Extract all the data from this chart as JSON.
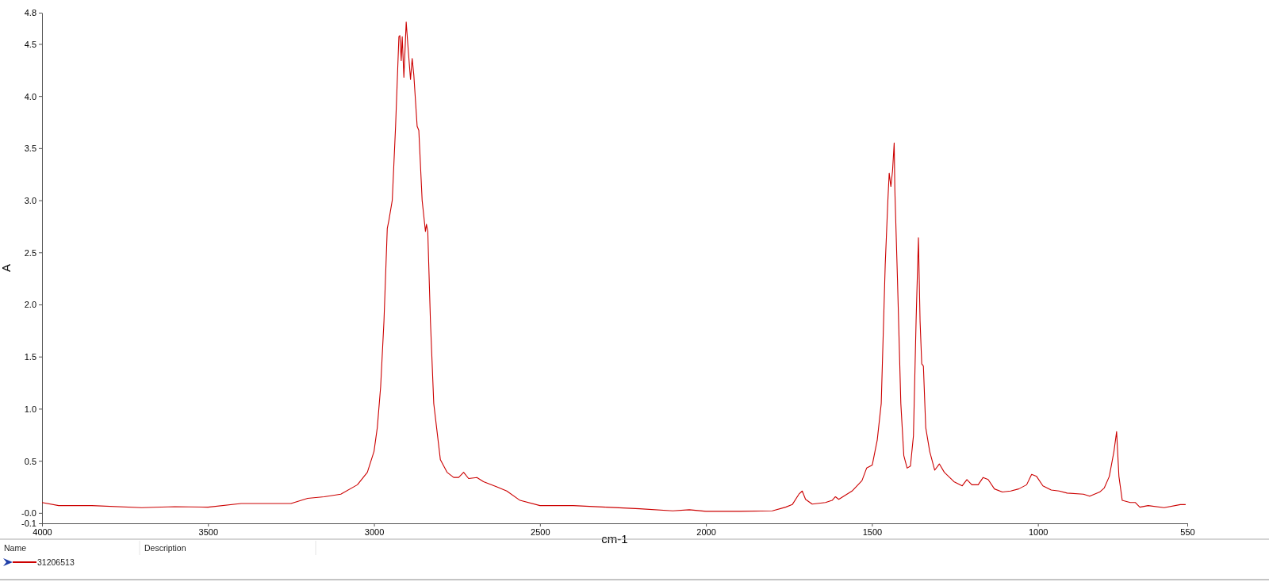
{
  "chart_data": {
    "type": "line",
    "xlabel": "cm-1",
    "ylabel": "A",
    "xlim": [
      4000,
      550
    ],
    "ylim": [
      -0.1,
      4.8
    ],
    "xticks": [
      4000,
      3500,
      3000,
      2500,
      2000,
      1500,
      1000,
      550
    ],
    "yticks": [
      4.8,
      4.5,
      {
        "value": 4,
        "label": "4.0"
      },
      3.5,
      {
        "value": 3,
        "label": "3.0"
      },
      2.5,
      {
        "value": 2,
        "label": "2.0"
      },
      1.5,
      {
        "value": 1,
        "label": "1.0"
      },
      0.5,
      {
        "value": 0,
        "label": "-0.0"
      },
      -0.1
    ],
    "grid": false,
    "legend": "bottom",
    "marker": "none",
    "line_style": "solid",
    "annotations": [
      "Name",
      "Description"
    ],
    "series": [
      {
        "name": "31206513",
        "color": "#cc0000",
        "x": [
          4000,
          3950,
          3850,
          3700,
          3600,
          3500,
          3400,
          3250,
          3200,
          3150,
          3100,
          3050,
          3020,
          3000,
          2990,
          2980,
          2970,
          2960,
          2955,
          2945,
          2935,
          2925,
          2922,
          2918,
          2915,
          2910,
          2903,
          2898,
          2890,
          2885,
          2880,
          2870,
          2865,
          2855,
          2845,
          2842,
          2838,
          2830,
          2820,
          2800,
          2780,
          2760,
          2745,
          2730,
          2715,
          2690,
          2670,
          2630,
          2600,
          2560,
          2500,
          2400,
          2300,
          2200,
          2100,
          2050,
          2000,
          1900,
          1800,
          1760,
          1740,
          1720,
          1710,
          1700,
          1680,
          1640,
          1620,
          1610,
          1600,
          1560,
          1530,
          1516,
          1499,
          1484,
          1472,
          1460,
          1452,
          1448,
          1443,
          1438,
          1433,
          1431,
          1423,
          1413,
          1404,
          1394,
          1384,
          1375,
          1367,
          1360,
          1355,
          1350,
          1345,
          1338,
          1326,
          1311,
          1297,
          1282,
          1253,
          1228,
          1214,
          1199,
          1180,
          1165,
          1150,
          1131,
          1107,
          1082,
          1058,
          1034,
          1019,
          1004,
          985,
          960,
          936,
          912,
          863,
          844,
          814,
          800,
          785,
          771,
          763,
          756,
          746,
          722,
          707,
          693,
          668,
          620,
          571,
          555
        ],
        "values": [
          0.1,
          0.07,
          0.07,
          0.05,
          0.06,
          0.055,
          0.09,
          0.09,
          0.14,
          0.155,
          0.18,
          0.27,
          0.39,
          0.59,
          0.82,
          1.21,
          1.84,
          2.73,
          2.81,
          3.0,
          3.71,
          4.57,
          4.58,
          4.34,
          4.57,
          4.18,
          4.71,
          4.49,
          4.16,
          4.36,
          4.2,
          3.71,
          3.67,
          3.0,
          2.7,
          2.77,
          2.7,
          1.84,
          1.05,
          0.51,
          0.39,
          0.34,
          0.34,
          0.39,
          0.33,
          0.34,
          0.3,
          0.25,
          0.21,
          0.12,
          0.07,
          0.07,
          0.055,
          0.04,
          0.02,
          0.03,
          0.015,
          0.015,
          0.02,
          0.055,
          0.08,
          0.18,
          0.21,
          0.13,
          0.085,
          0.1,
          0.12,
          0.155,
          0.13,
          0.21,
          0.31,
          0.43,
          0.46,
          0.7,
          1.05,
          2.38,
          3.0,
          3.26,
          3.13,
          3.28,
          3.55,
          3.1,
          2.23,
          1.05,
          0.55,
          0.43,
          0.45,
          0.74,
          1.84,
          2.64,
          1.84,
          1.43,
          1.41,
          0.82,
          0.59,
          0.41,
          0.47,
          0.39,
          0.3,
          0.26,
          0.32,
          0.27,
          0.27,
          0.34,
          0.32,
          0.23,
          0.2,
          0.21,
          0.23,
          0.27,
          0.37,
          0.35,
          0.26,
          0.22,
          0.21,
          0.19,
          0.18,
          0.16,
          0.2,
          0.24,
          0.35,
          0.59,
          0.78,
          0.35,
          0.12,
          0.1,
          0.1,
          0.055,
          0.07,
          0.05,
          0.08,
          0.08
        ]
      }
    ]
  }
}
